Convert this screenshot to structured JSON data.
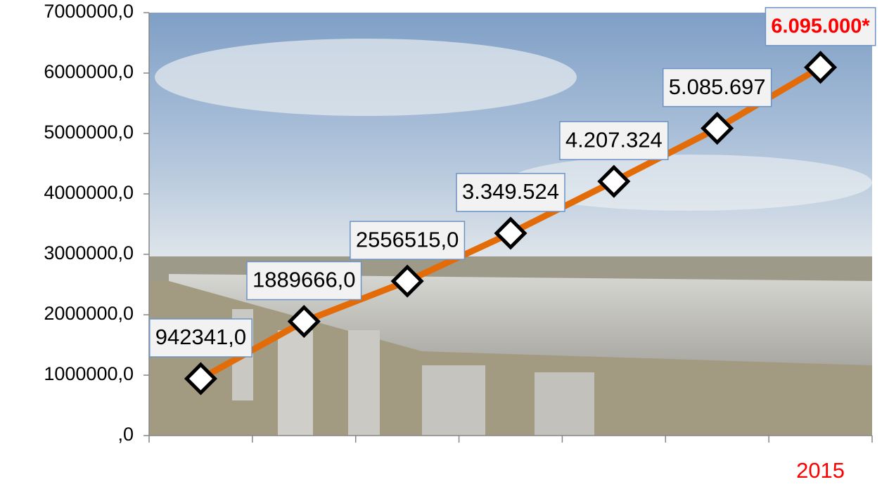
{
  "chart_data": {
    "type": "line",
    "categories": [
      null,
      null,
      null,
      null,
      null,
      null,
      "2015"
    ],
    "category_label_colors": [
      "#000000",
      "#000000",
      "#000000",
      "#000000",
      "#000000",
      "#000000",
      "#ff0000"
    ],
    "values": [
      942341,
      1889666,
      2556515,
      3349524,
      4207324,
      5085697,
      6095000
    ],
    "value_labels": [
      "942341,0",
      "1889666,0",
      "2556515,0",
      "3.349.524",
      "4.207.324",
      "5.085.697",
      "6.095.000*"
    ],
    "value_label_colors": [
      "#000000",
      "#000000",
      "#000000",
      "#000000",
      "#000000",
      "#000000",
      "#ff0000"
    ],
    "color": "#e36c09",
    "ylim": [
      0,
      7000000
    ],
    "yticks": [
      {
        "value": 0,
        "label": ",0"
      },
      {
        "value": 1000000,
        "label": "1000000,0"
      },
      {
        "value": 2000000,
        "label": "2000000,0"
      },
      {
        "value": 3000000,
        "label": "3000000,0"
      },
      {
        "value": 4000000,
        "label": "4000000,0"
      },
      {
        "value": 5000000,
        "label": "5000000,0"
      },
      {
        "value": 6000000,
        "label": "6000000,0"
      },
      {
        "value": 7000000,
        "label": "7000000,0"
      }
    ]
  }
}
